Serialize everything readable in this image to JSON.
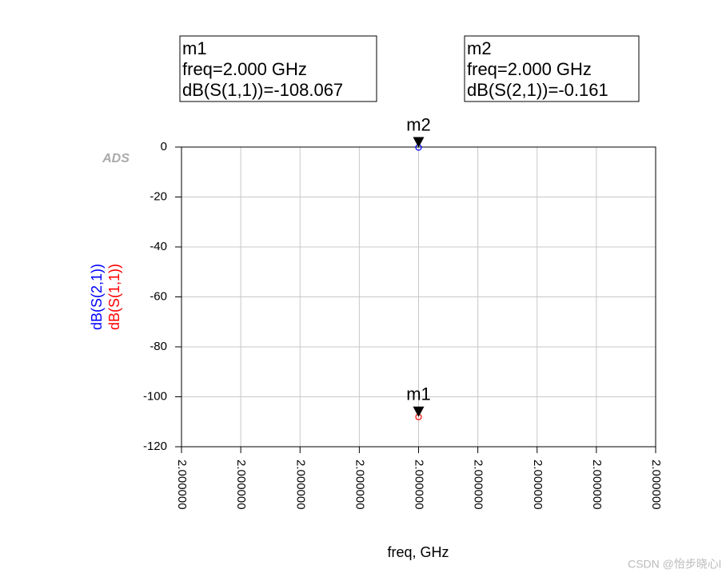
{
  "chart_data": {
    "type": "scatter",
    "x_label": "freq, GHz",
    "logo": "ADS",
    "watermark": "CSDN @怡步晓心l",
    "x": [
      2.0
    ],
    "series": [
      {
        "name": "dB(S(1,1))",
        "color": "#ff0000",
        "values": [
          -108.067
        ]
      },
      {
        "name": "dB(S(2,1))",
        "color": "#0000ff",
        "values": [
          -0.161
        ]
      }
    ],
    "markers": [
      {
        "name": "m1",
        "freq": "freq=2.000 GHz",
        "readout": "dB(S(1,1))=-108.067"
      },
      {
        "name": "m2",
        "freq": "freq=2.000 GHz",
        "readout": "dB(S(2,1))=-0.161"
      }
    ],
    "xlim": [
      1.9999996,
      2.0000004
    ],
    "xticks": [
      {
        "value": 1.9999996,
        "label": "2.000000"
      },
      {
        "value": 1.9999997,
        "label": "2.000000"
      },
      {
        "value": 1.9999998,
        "label": "2.000000"
      },
      {
        "value": 1.9999999,
        "label": "2.000000"
      },
      {
        "value": 2.0,
        "label": "2.000000"
      },
      {
        "value": 2.0000001,
        "label": "2.000000"
      },
      {
        "value": 2.0000002,
        "label": "2.000000"
      },
      {
        "value": 2.0000003,
        "label": "2.000000"
      },
      {
        "value": 2.0000004,
        "label": "2.000000"
      }
    ],
    "ylim": [
      -120,
      0
    ],
    "yticks": [
      0,
      -20,
      -40,
      -60,
      -80,
      -100,
      -120
    ],
    "grid": true
  }
}
